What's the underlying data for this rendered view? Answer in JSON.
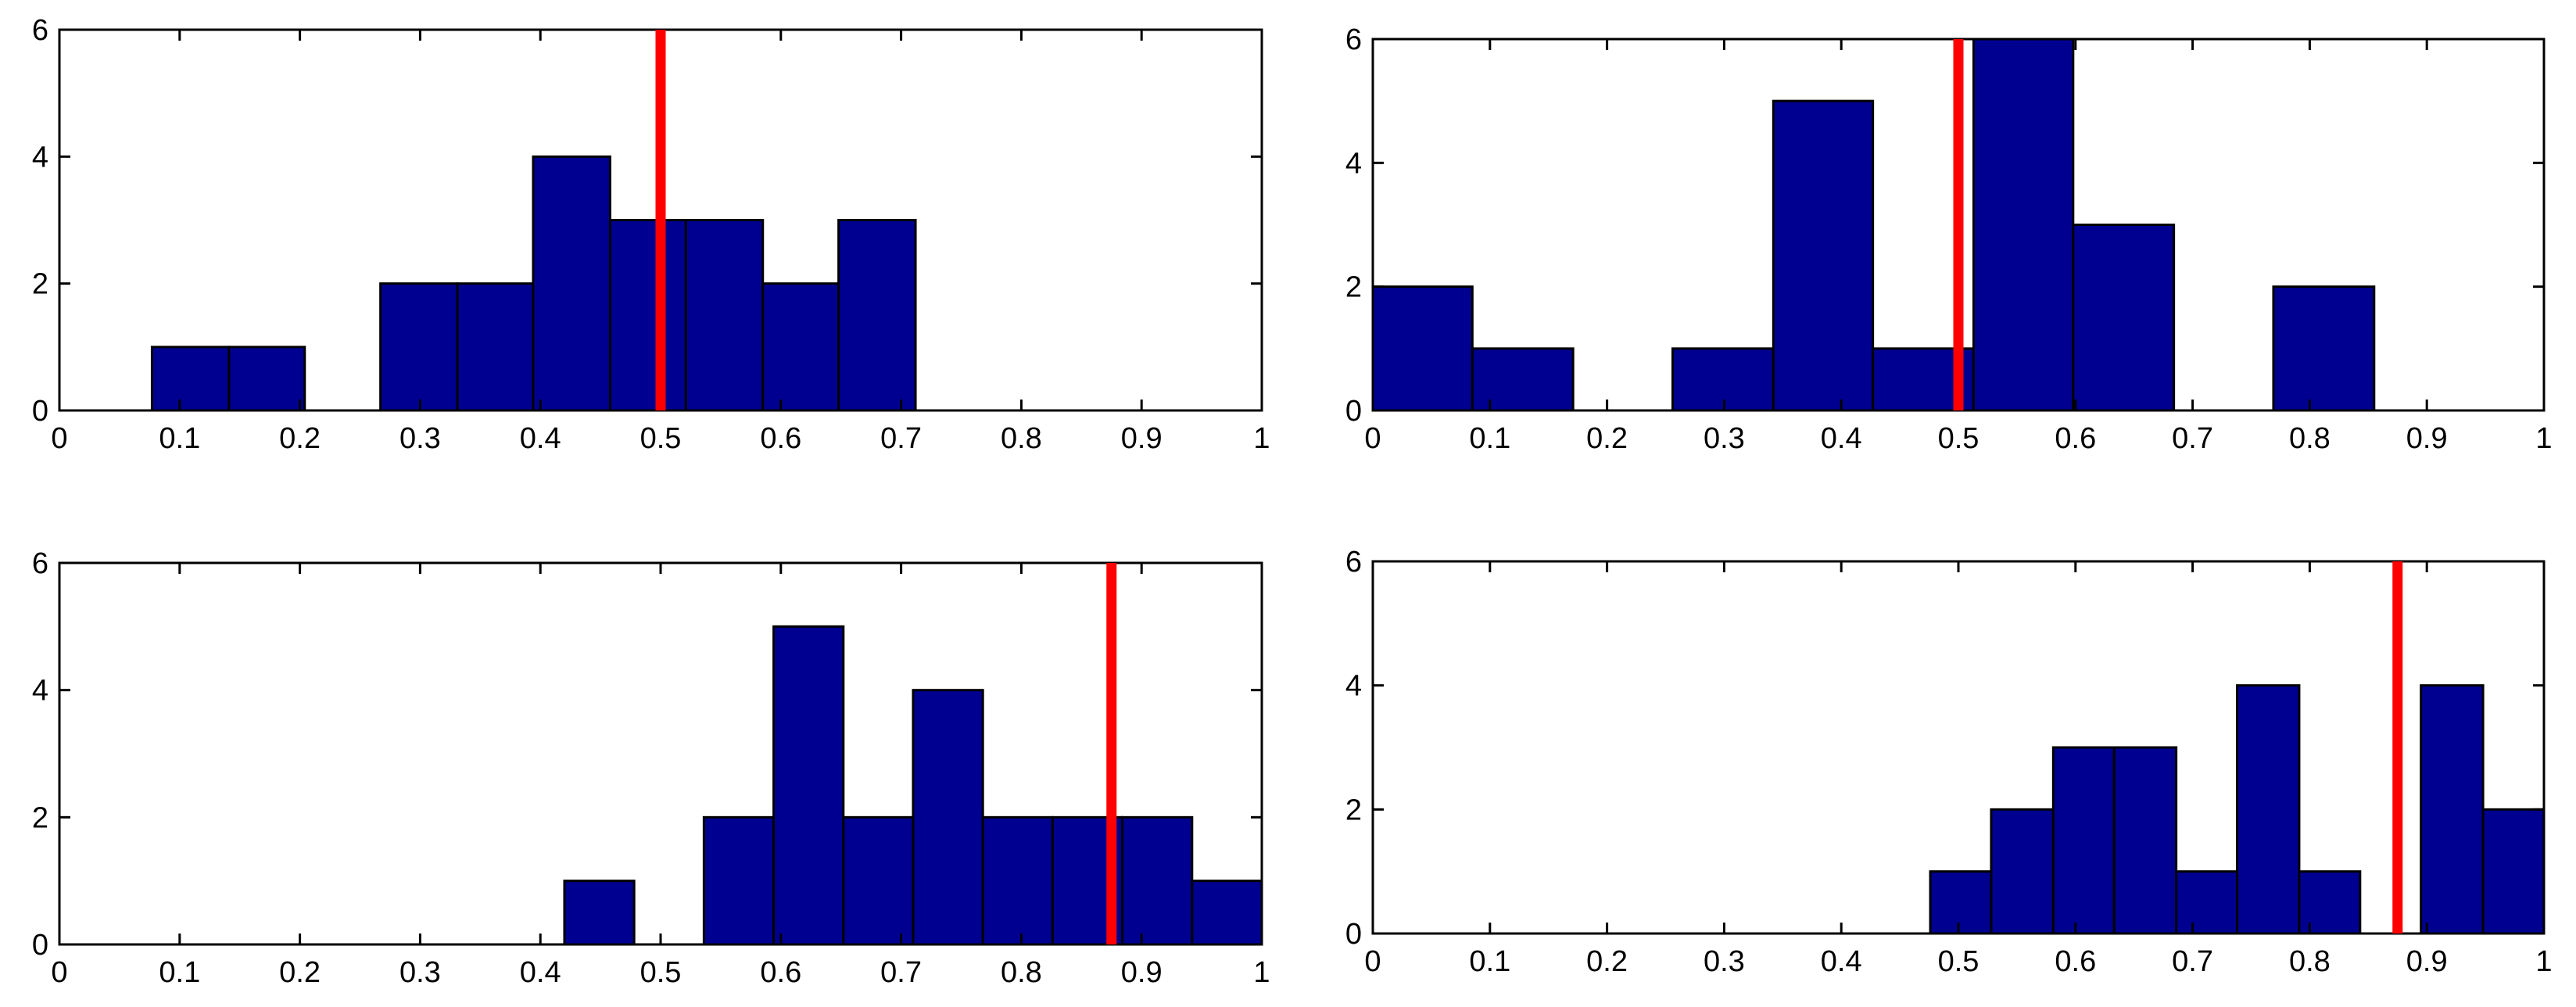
{
  "style": {
    "bar_color": "#000090",
    "bar_edge": "#000000",
    "marker_color": "#ff0000"
  },
  "chart_data": [
    {
      "type": "bar",
      "title": "",
      "xlabel": "",
      "ylabel": "",
      "xlim": [
        0,
        1
      ],
      "ylim": [
        0,
        6
      ],
      "xticks": [
        0,
        0.1,
        0.2,
        0.3,
        0.4,
        0.5,
        0.6,
        0.7,
        0.8,
        0.9,
        1
      ],
      "xtick_labels": [
        "0",
        "0.1",
        "0.2",
        "0.3",
        "0.4",
        "0.5",
        "0.6",
        "0.7",
        "0.8",
        "0.9",
        "1"
      ],
      "yticks": [
        0,
        2,
        4,
        6
      ],
      "ytick_labels": [
        "0",
        "2",
        "4",
        "6"
      ],
      "bin_edges": [
        0.077,
        0.141,
        0.204,
        0.267,
        0.331,
        0.394,
        0.458,
        0.521,
        0.585,
        0.648,
        0.712
      ],
      "values": [
        1,
        1,
        0,
        2,
        2,
        4,
        3,
        3,
        2,
        3
      ],
      "vertical_line_x": 0.5
    },
    {
      "type": "bar",
      "title": "",
      "xlabel": "",
      "ylabel": "",
      "xlim": [
        0,
        1
      ],
      "ylim": [
        0,
        6
      ],
      "xticks": [
        0,
        0.1,
        0.2,
        0.3,
        0.4,
        0.5,
        0.6,
        0.7,
        0.8,
        0.9,
        1
      ],
      "xtick_labels": [
        "0",
        "0.1",
        "0.2",
        "0.3",
        "0.4",
        "0.5",
        "0.6",
        "0.7",
        "0.8",
        "0.9",
        "1"
      ],
      "yticks": [
        0,
        2,
        4,
        6
      ],
      "ytick_labels": [
        "0",
        "2",
        "4",
        "6"
      ],
      "bin_edges": [
        0.0,
        0.085,
        0.171,
        0.256,
        0.342,
        0.427,
        0.513,
        0.598,
        0.684,
        0.769,
        0.855
      ],
      "values": [
        2,
        1,
        0,
        1,
        5,
        1,
        6,
        3,
        0,
        2
      ],
      "vertical_line_x": 0.5
    },
    {
      "type": "bar",
      "title": "",
      "xlabel": "",
      "ylabel": "",
      "xlim": [
        0,
        1
      ],
      "ylim": [
        0,
        6
      ],
      "xticks": [
        0,
        0.1,
        0.2,
        0.3,
        0.4,
        0.5,
        0.6,
        0.7,
        0.8,
        0.9,
        1
      ],
      "xtick_labels": [
        "0",
        "0.1",
        "0.2",
        "0.3",
        "0.4",
        "0.5",
        "0.6",
        "0.7",
        "0.8",
        "0.9",
        "1"
      ],
      "yticks": [
        0,
        2,
        4,
        6
      ],
      "ytick_labels": [
        "0",
        "2",
        "4",
        "6"
      ],
      "bin_edges": [
        0.42,
        0.478,
        0.536,
        0.594,
        0.652,
        0.71,
        0.768,
        0.826,
        0.884,
        0.942,
        1.0
      ],
      "values": [
        1,
        0,
        2,
        5,
        2,
        4,
        2,
        2,
        2,
        1
      ],
      "vertical_line_x": 0.875
    },
    {
      "type": "bar",
      "title": "",
      "xlabel": "",
      "ylabel": "",
      "xlim": [
        0,
        1
      ],
      "ylim": [
        0,
        6
      ],
      "xticks": [
        0,
        0.1,
        0.2,
        0.3,
        0.4,
        0.5,
        0.6,
        0.7,
        0.8,
        0.9,
        1
      ],
      "xtick_labels": [
        "0",
        "0.1",
        "0.2",
        "0.3",
        "0.4",
        "0.5",
        "0.6",
        "0.7",
        "0.8",
        "0.9",
        "1"
      ],
      "yticks": [
        0,
        2,
        4,
        6
      ],
      "ytick_labels": [
        "0",
        "2",
        "4",
        "6"
      ],
      "bin_edges": [
        0.476,
        0.528,
        0.581,
        0.633,
        0.686,
        0.738,
        0.791,
        0.843,
        0.895,
        0.948,
        1.0
      ],
      "values": [
        1,
        2,
        3,
        3,
        1,
        4,
        1,
        0,
        4,
        2
      ],
      "vertical_line_x": 0.875
    }
  ]
}
